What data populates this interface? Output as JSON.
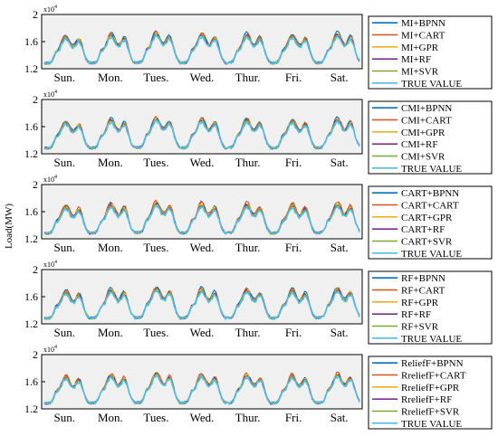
{
  "ylabel": "Load(MW)",
  "colors": [
    "#0072BD",
    "#D95319",
    "#EDB120",
    "#7E2F8E",
    "#77AC30",
    "#4DBEEE"
  ],
  "chart_data": [
    {
      "type": "line",
      "exponent_label": "x10",
      "exponent_power": "4",
      "ylim": [
        12000,
        20000
      ],
      "yticks": [
        {
          "value": 12000,
          "label": "1.2"
        },
        {
          "value": 16000,
          "label": "1.6"
        },
        {
          "value": 20000,
          "label": "2"
        }
      ],
      "xtick_labels": [
        "Sun.",
        "Mon.",
        "Tues.",
        "Wed.",
        "Thur.",
        "Fri.",
        "Sat."
      ],
      "grid": false,
      "legend": "outside-right",
      "series": [
        {
          "name": "MI+BPNN",
          "color": "#0072BD",
          "peak_shift": 600
        },
        {
          "name": "MI+CART",
          "color": "#D95319",
          "peak_shift": 400
        },
        {
          "name": "MI+GPR",
          "color": "#EDB120",
          "peak_shift": 200
        },
        {
          "name": "MI+RF",
          "color": "#7E2F8E",
          "peak_shift": 100
        },
        {
          "name": "MI+SVR",
          "color": "#77AC30",
          "peak_shift": 0
        },
        {
          "name": "TRUE VALUE",
          "color": "#4DBEEE",
          "peak_shift": -300
        }
      ]
    },
    {
      "type": "line",
      "exponent_label": "x10",
      "exponent_power": "4",
      "ylim": [
        12000,
        20000
      ],
      "yticks": [
        {
          "value": 12000,
          "label": "1.2"
        },
        {
          "value": 16000,
          "label": "1.6"
        },
        {
          "value": 20000,
          "label": "2"
        }
      ],
      "xtick_labels": [
        "Sun.",
        "Mon.",
        "Tues.",
        "Wed.",
        "Thur.",
        "Fri.",
        "Sat."
      ],
      "grid": false,
      "legend": "outside-right",
      "series": [
        {
          "name": "CMI+BPNN",
          "color": "#0072BD",
          "peak_shift": 500
        },
        {
          "name": "CMI+CART",
          "color": "#D95319",
          "peak_shift": 350
        },
        {
          "name": "CMI+GPR",
          "color": "#EDB120",
          "peak_shift": 200
        },
        {
          "name": "CMI+RF",
          "color": "#7E2F8E",
          "peak_shift": 100
        },
        {
          "name": "CMI+SVR",
          "color": "#77AC30",
          "peak_shift": 0
        },
        {
          "name": "TRUE VALUE",
          "color": "#4DBEEE",
          "peak_shift": -300
        }
      ]
    },
    {
      "type": "line",
      "exponent_label": "x10",
      "exponent_power": "4",
      "ylim": [
        12000,
        20000
      ],
      "yticks": [
        {
          "value": 12000,
          "label": "1.2"
        },
        {
          "value": 16000,
          "label": "1.6"
        },
        {
          "value": 20000,
          "label": "2"
        }
      ],
      "xtick_labels": [
        "Sun.",
        "Mon.",
        "Tues.",
        "Wed.",
        "Thur.",
        "Fri.",
        "Sat."
      ],
      "grid": false,
      "legend": "outside-right",
      "series": [
        {
          "name": "CART+BPNN",
          "color": "#0072BD",
          "peak_shift": 500
        },
        {
          "name": "CART+CART",
          "color": "#D95319",
          "peak_shift": 700
        },
        {
          "name": "CART+GPR",
          "color": "#EDB120",
          "peak_shift": 300
        },
        {
          "name": "CART+RF",
          "color": "#7E2F8E",
          "peak_shift": 100
        },
        {
          "name": "CART+SVR",
          "color": "#77AC30",
          "peak_shift": 0
        },
        {
          "name": "TRUE VALUE",
          "color": "#4DBEEE",
          "peak_shift": -300
        }
      ]
    },
    {
      "type": "line",
      "exponent_label": "x10",
      "exponent_power": "4",
      "ylim": [
        12000,
        20000
      ],
      "yticks": [
        {
          "value": 12000,
          "label": "1.2"
        },
        {
          "value": 16000,
          "label": "1.6"
        },
        {
          "value": 20000,
          "label": "2"
        }
      ],
      "xtick_labels": [
        "Sun.",
        "Mon.",
        "Tues.",
        "Wed.",
        "Thur.",
        "Fri.",
        "Sat."
      ],
      "grid": false,
      "legend": "outside-right",
      "series": [
        {
          "name": "RF+BPNN",
          "color": "#0072BD",
          "peak_shift": 600
        },
        {
          "name": "RF+CART",
          "color": "#D95319",
          "peak_shift": 400
        },
        {
          "name": "RF+GPR",
          "color": "#EDB120",
          "peak_shift": 200
        },
        {
          "name": "RF+RF",
          "color": "#7E2F8E",
          "peak_shift": 100
        },
        {
          "name": "RF+SVR",
          "color": "#77AC30",
          "peak_shift": 0
        },
        {
          "name": "TRUE VALUE",
          "color": "#4DBEEE",
          "peak_shift": -300
        }
      ]
    },
    {
      "type": "line",
      "exponent_label": "x10",
      "exponent_power": "4",
      "ylim": [
        12000,
        20000
      ],
      "yticks": [
        {
          "value": 12000,
          "label": "1.2"
        },
        {
          "value": 16000,
          "label": "1.6"
        },
        {
          "value": 20000,
          "label": "2"
        }
      ],
      "xtick_labels": [
        "Sun.",
        "Mon.",
        "Tues.",
        "Wed.",
        "Thur.",
        "Fri.",
        "Sat."
      ],
      "grid": false,
      "legend": "outside-right",
      "series": [
        {
          "name": "ReliefF+BPNN",
          "color": "#0072BD",
          "peak_shift": 300
        },
        {
          "name": "RreliefF+CART",
          "color": "#D95319",
          "peak_shift": 500
        },
        {
          "name": "RreliefF+GPR",
          "color": "#EDB120",
          "peak_shift": 200
        },
        {
          "name": "RreliefF+RF",
          "color": "#7E2F8E",
          "peak_shift": 100
        },
        {
          "name": "RreliefF+SVR",
          "color": "#77AC30",
          "peak_shift": 0
        },
        {
          "name": "TRUE VALUE",
          "color": "#4DBEEE",
          "peak_shift": -300
        }
      ]
    }
  ]
}
